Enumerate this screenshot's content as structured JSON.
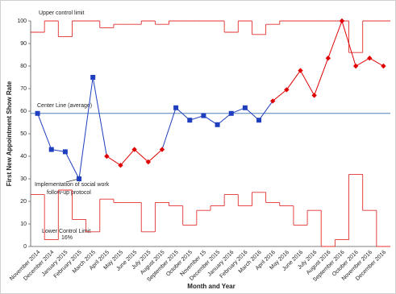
{
  "chart_data": {
    "type": "control",
    "y_label": "First New Appointment Show Rate",
    "x_label": "Month and Year",
    "categories": [
      "November 2014",
      "December 2014",
      "January 2015",
      "February 2015",
      "March 2015",
      "April 2015",
      "May 2015",
      "June 2015",
      "July 2015",
      "August 2015",
      "September 2015",
      "October 2015",
      "November 15",
      "December 2015",
      "January 2016",
      "February 2016",
      "March 2016",
      "April 2016",
      "May 2016",
      "June 2016",
      "July 2016",
      "August 2016",
      "September 2016",
      "October 2016",
      "November 2016",
      "December 2016"
    ],
    "values": [
      59,
      43,
      42,
      30,
      75,
      40,
      36,
      43,
      37.5,
      43,
      61.5,
      56,
      58,
      54,
      59,
      61.5,
      56,
      64.5,
      69.5,
      78,
      67,
      83.5,
      100,
      80,
      83.5,
      80
    ],
    "point_colors": [
      "#1f3fbf",
      "#1f3fbf",
      "#1f3fbf",
      "#1f3fbf",
      "#1f3fbf",
      "#e00000",
      "#e00000",
      "#e00000",
      "#e00000",
      "#e00000",
      "#1f3fbf",
      "#1f3fbf",
      "#1f3fbf",
      "#1f3fbf",
      "#1f3fbf",
      "#1f3fbf",
      "#1f3fbf",
      "#e00000",
      "#e00000",
      "#e00000",
      "#e00000",
      "#e00000",
      "#e00000",
      "#e00000",
      "#e00000",
      "#e00000"
    ],
    "center_line": {
      "label": "Center Line (average)",
      "value": 59,
      "color": "#4f81bd"
    },
    "upper_limit": {
      "label": "Upper control limit",
      "color": "#e03030",
      "values": [
        95,
        100,
        93,
        100,
        100,
        97,
        98.5,
        98.5,
        100,
        98.5,
        100,
        100,
        100,
        100,
        95,
        100,
        94,
        98.5,
        100,
        100,
        100,
        100,
        100,
        86,
        100,
        100
      ]
    },
    "lower_limit": {
      "label": "Lower Control Limit",
      "sublabel": "16%",
      "color": "#e03030",
      "values": [
        23,
        3,
        25,
        12,
        6.5,
        21,
        19.5,
        19.5,
        6.5,
        19.5,
        18,
        9.5,
        16,
        18,
        23,
        18,
        24,
        19.5,
        18,
        9.5,
        16,
        0,
        3,
        32,
        16,
        0
      ]
    },
    "annotation": [
      "Implementation of social work",
      "follow-up protocol"
    ],
    "ylim": [
      0,
      100
    ],
    "yticks": [
      0,
      10,
      20,
      30,
      40,
      50,
      60,
      70,
      80,
      90,
      100
    ]
  }
}
